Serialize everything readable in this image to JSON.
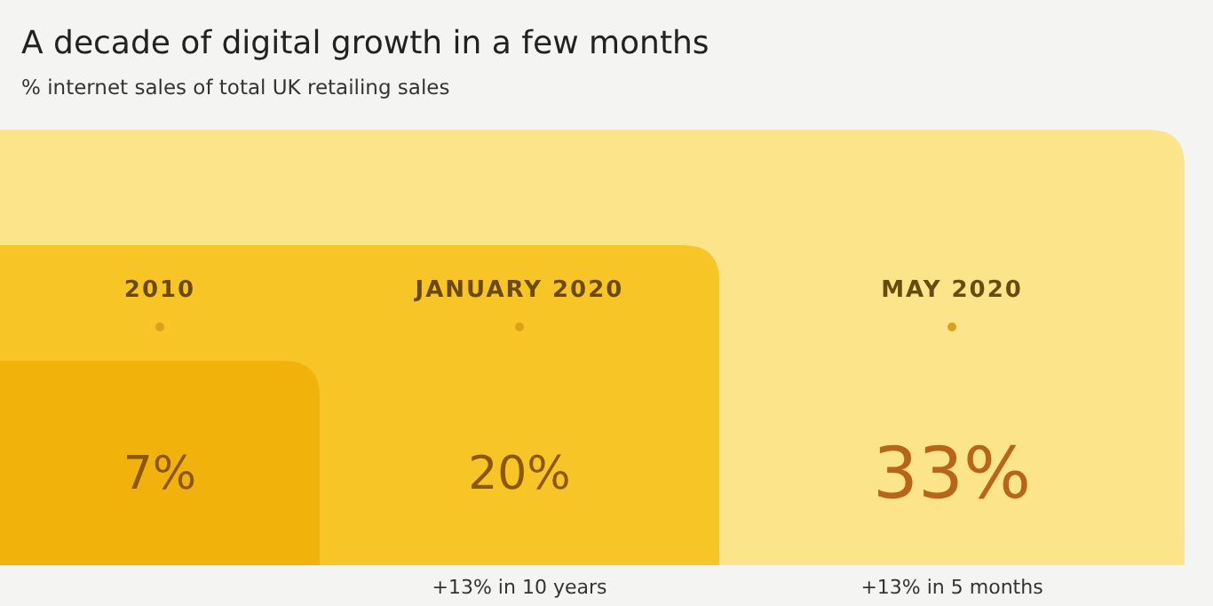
{
  "chart_data": {
    "type": "other",
    "title": "A decade of digital growth in a few months",
    "subtitle": "% internet sales of total UK retailing sales",
    "categories": [
      "2010",
      "JANUARY 2020",
      "MAY 2020"
    ],
    "values": [
      7,
      20,
      33
    ],
    "value_labels": [
      "7%",
      "20%",
      "33%"
    ],
    "colors": [
      "#f1b20c",
      "#f7c626",
      "#fbe48a"
    ],
    "annotations": [
      "+13% in 10 years",
      "+13% in 5 months"
    ]
  }
}
